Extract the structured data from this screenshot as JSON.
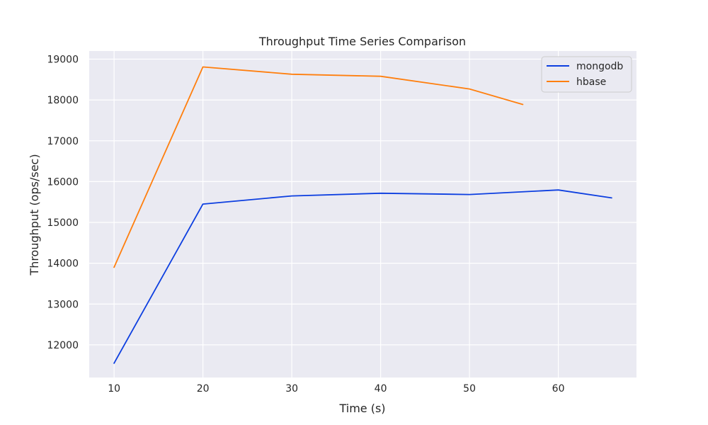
{
  "chart_data": {
    "type": "line",
    "title": "Throughput Time Series Comparison",
    "xlabel": "Time (s)",
    "ylabel": "Throughput (ops/sec)",
    "xlim": [
      7.2,
      68.8
    ],
    "ylim": [
      11200,
      19200
    ],
    "xticks": [
      10,
      20,
      30,
      40,
      50,
      60
    ],
    "yticks": [
      12000,
      13000,
      14000,
      15000,
      16000,
      17000,
      18000,
      19000
    ],
    "grid": true,
    "legend_position": "top-right",
    "series": [
      {
        "name": "mongodb",
        "color": "#0d3fe0",
        "x": [
          10,
          20,
          30,
          40,
          50,
          60,
          66
        ],
        "y": [
          11550,
          15450,
          15650,
          15715,
          15685,
          15795,
          15600
        ]
      },
      {
        "name": "hbase",
        "color": "#ff7f0e",
        "x": [
          10,
          20,
          30,
          40,
          50,
          56
        ],
        "y": [
          13900,
          18810,
          18630,
          18580,
          18270,
          17890
        ]
      }
    ]
  }
}
